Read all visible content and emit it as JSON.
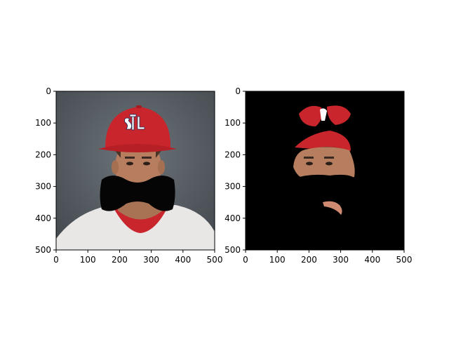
{
  "figure": {
    "panels": [
      {
        "name": "original-with-occlusion",
        "content": "photo",
        "xlim": [
          0,
          500
        ],
        "ylim": [
          500,
          0
        ],
        "xticks": [
          0,
          100,
          200,
          300,
          400,
          500
        ],
        "yticks": [
          0,
          100,
          200,
          300,
          400,
          500
        ]
      },
      {
        "name": "masked-result",
        "content": "masked",
        "xlim": [
          0,
          500
        ],
        "ylim": [
          500,
          0
        ],
        "xticks": [
          0,
          100,
          200,
          300,
          400,
          500
        ],
        "yticks": [
          0,
          100,
          200,
          300,
          400,
          500
        ]
      }
    ]
  },
  "colors": {
    "cap_red": "#c8262c",
    "background_gray": "#5a6066",
    "skin": "#b07a5c",
    "jersey": "#e8e6e4",
    "occluder": "#050505",
    "mask_black": "#000000"
  }
}
